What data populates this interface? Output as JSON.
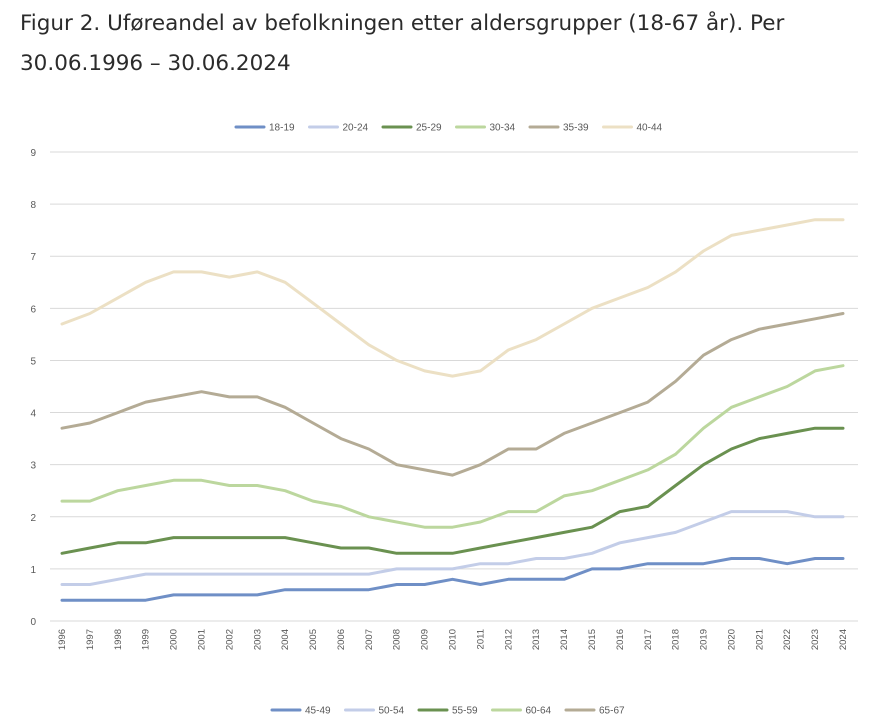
{
  "page": {
    "title": "Figur 2. Uføreandel av befolkningen etter aldersgrupper (18-67 år). Per 30.06.1996 – 30.06.2024"
  },
  "chart_data": {
    "type": "line",
    "title": "Figur 2. Uføreandel av befolkningen etter aldersgrupper (18-67 år). Per 30.06.1996 – 30.06.2024",
    "xlabel": "",
    "ylabel": "",
    "ylim": [
      0,
      9
    ],
    "yticks": [
      "0",
      "1",
      "2",
      "3",
      "4",
      "5",
      "6",
      "7",
      "8",
      "9"
    ],
    "grid": true,
    "legend_placement": "top and bottom",
    "categories": [
      "1996",
      "1997",
      "1998",
      "1999",
      "2000",
      "2001",
      "2002",
      "2003",
      "2004",
      "2005",
      "2006",
      "2007",
      "2008",
      "2009",
      "2010",
      "2011",
      "2012",
      "2013",
      "2014",
      "2015",
      "2016",
      "2017",
      "2018",
      "2019",
      "2020",
      "2021",
      "2022",
      "2023",
      "2024"
    ],
    "legend_top": [
      "18-19",
      "20-24",
      "25-29",
      "30-34",
      "35-39",
      "40-44"
    ],
    "legend_bottom": [
      "45-49",
      "50-54",
      "55-59",
      "60-64",
      "65-67"
    ],
    "series": [
      {
        "name": "18-19",
        "color": "#6f8fc6",
        "values": [
          0.4,
          0.4,
          0.4,
          0.4,
          0.5,
          0.5,
          0.5,
          0.5,
          0.6,
          0.6,
          0.6,
          0.6,
          0.7,
          0.7,
          0.8,
          0.7,
          0.8,
          0.8,
          0.8,
          1.0,
          1.0,
          1.1,
          1.1,
          1.1,
          1.2,
          1.2,
          1.1,
          1.2,
          1.2
        ]
      },
      {
        "name": "20-24",
        "color": "#c3cde8",
        "values": [
          0.7,
          0.7,
          0.8,
          0.9,
          0.9,
          0.9,
          0.9,
          0.9,
          0.9,
          0.9,
          0.9,
          0.9,
          1.0,
          1.0,
          1.0,
          1.1,
          1.1,
          1.2,
          1.2,
          1.3,
          1.5,
          1.6,
          1.7,
          1.9,
          2.1,
          2.1,
          2.1,
          2.0,
          2.0
        ]
      },
      {
        "name": "25-29",
        "color": "#6a9150",
        "values": [
          1.3,
          1.4,
          1.5,
          1.5,
          1.6,
          1.6,
          1.6,
          1.6,
          1.6,
          1.5,
          1.4,
          1.4,
          1.3,
          1.3,
          1.3,
          1.4,
          1.5,
          1.6,
          1.7,
          1.8,
          2.1,
          2.2,
          2.6,
          3.0,
          3.3,
          3.5,
          3.6,
          3.7,
          3.7
        ]
      },
      {
        "name": "30-34",
        "color": "#bcd79e",
        "values": [
          2.3,
          2.3,
          2.5,
          2.6,
          2.7,
          2.7,
          2.6,
          2.6,
          2.5,
          2.3,
          2.2,
          2.0,
          1.9,
          1.8,
          1.8,
          1.9,
          2.1,
          2.1,
          2.4,
          2.5,
          2.7,
          2.9,
          3.2,
          3.7,
          4.1,
          4.3,
          4.5,
          4.8,
          4.9
        ]
      },
      {
        "name": "35-39",
        "color": "#b4ab95",
        "values": [
          3.7,
          3.8,
          4.0,
          4.2,
          4.3,
          4.4,
          4.3,
          4.3,
          4.1,
          3.8,
          3.5,
          3.3,
          3.0,
          2.9,
          2.8,
          3.0,
          3.3,
          3.3,
          3.6,
          3.8,
          4.0,
          4.2,
          4.6,
          5.1,
          5.4,
          5.6,
          5.7,
          5.8,
          5.9
        ]
      },
      {
        "name": "40-44",
        "color": "#ece0c4",
        "values": [
          5.7,
          5.9,
          6.2,
          6.5,
          6.7,
          6.7,
          6.6,
          6.7,
          6.5,
          6.1,
          5.7,
          5.3,
          5.0,
          4.8,
          4.7,
          4.8,
          5.2,
          5.4,
          5.7,
          6.0,
          6.2,
          6.4,
          6.7,
          7.1,
          7.4,
          7.5,
          7.6,
          7.7,
          7.7
        ]
      }
    ],
    "legend_colors": {
      "18-19": "#6f8fc6",
      "20-24": "#c3cde8",
      "25-29": "#6a9150",
      "30-34": "#bcd79e",
      "35-39": "#b4ab95",
      "40-44": "#ece0c4",
      "45-49": "#6f8fc6",
      "50-54": "#c3cde8",
      "55-59": "#6a9150",
      "60-64": "#bcd79e",
      "65-67": "#b4ab95"
    }
  }
}
